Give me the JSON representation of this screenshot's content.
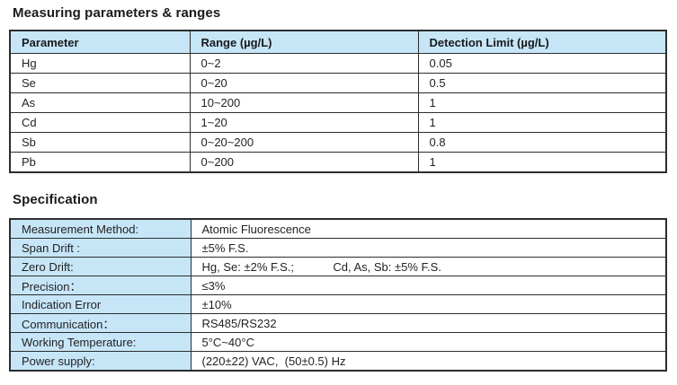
{
  "colors": {
    "header_blue": "#c6e6f8",
    "border_dark": "#2d2d2d",
    "text": "#231f20"
  },
  "measuring": {
    "title": "Measuring parameters & ranges",
    "table": {
      "headers": [
        "Parameter",
        "Range (µg/L)",
        "Detection Limit (µg/L)"
      ],
      "rows": [
        [
          "Hg",
          "0~2",
          "0.05"
        ],
        [
          "Se",
          "0~20",
          "0.5"
        ],
        [
          "As",
          "10~200",
          "1"
        ],
        [
          "Cd",
          "1~20",
          "1"
        ],
        [
          "Sb",
          "0~20~200",
          "0.8"
        ],
        [
          "Pb",
          "0~200",
          "1"
        ]
      ]
    }
  },
  "specification": {
    "title": "Specification",
    "table": {
      "rows": [
        {
          "label": "Measurement Method:",
          "value": "Atomic Fluorescence"
        },
        {
          "label": "Span Drift :",
          "value": "±5% F.S."
        },
        {
          "label": "Zero Drift:",
          "value": "Hg, Se: ±2% F.S.;            Cd, As, Sb: ±5% F.S."
        },
        {
          "label": "Precision：",
          "value": "≤3%"
        },
        {
          "label": "Indication Error",
          "value": "±10%"
        },
        {
          "label": "Communication：",
          "value": "RS485/RS232"
        },
        {
          "label": "Working Temperature:",
          "value": "5°C~40°C"
        },
        {
          "label": "Power supply:",
          "value": "(220±22) VAC,  (50±0.5) Hz"
        }
      ]
    }
  }
}
